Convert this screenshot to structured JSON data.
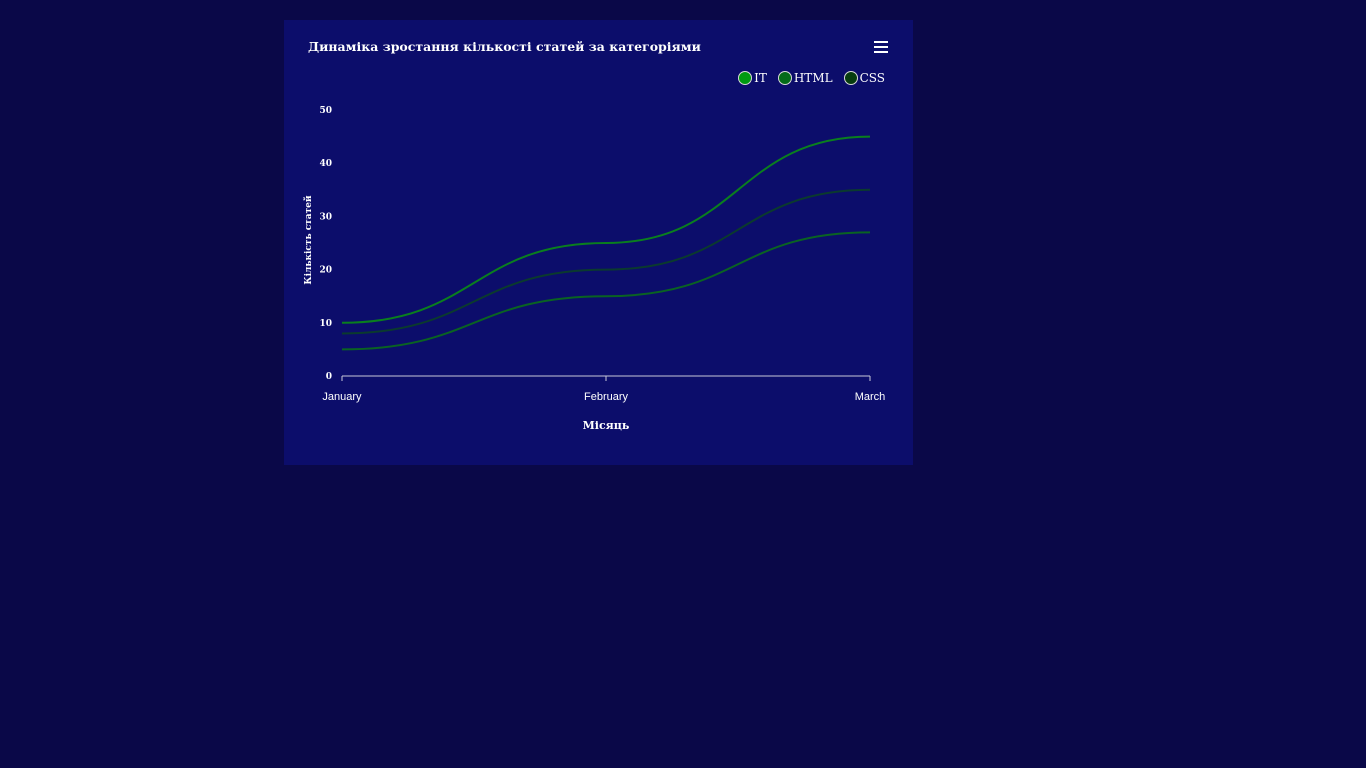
{
  "chart_data": {
    "type": "line",
    "title": "Динаміка зростання кількості статей за категоріями",
    "xlabel": "Місяць",
    "ylabel": "Кількість статей",
    "categories": [
      "January",
      "February",
      "March"
    ],
    "ylim": [
      0,
      50
    ],
    "yticks": [
      0,
      10,
      20,
      30,
      40,
      50
    ],
    "grid": false,
    "smooth": true,
    "legend": "top-right",
    "series": [
      {
        "name": "IT",
        "values": [
          10,
          25,
          45
        ],
        "color": "#0a7f1e",
        "legend_color": "#009a11"
      },
      {
        "name": "HTML",
        "values": [
          5,
          15,
          27
        ],
        "color": "#0a6322",
        "legend_color": "#046b18"
      },
      {
        "name": "CSS",
        "values": [
          8,
          20,
          35
        ],
        "color": "#0b3a2e",
        "legend_color": "#073d0f"
      }
    ]
  },
  "menu_icon": "hamburger-icon"
}
